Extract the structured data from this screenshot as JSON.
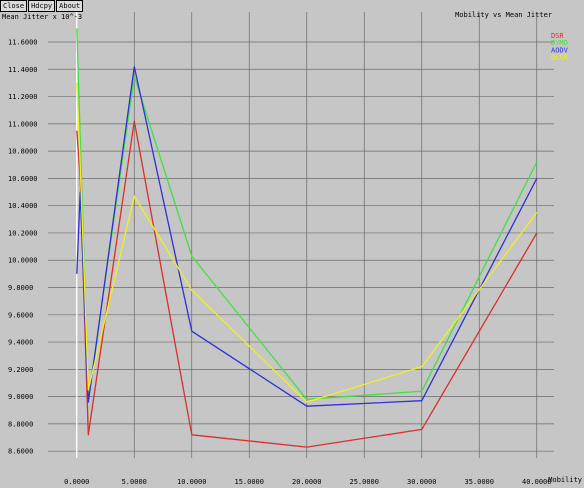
{
  "toolbar": {
    "close_label": "Close",
    "hdcpy_label": "Hdcpy",
    "about_label": "About"
  },
  "chart_data": {
    "type": "line",
    "title": "Mobility vs Mean Jitter",
    "xlabel": "Mobility",
    "ylabel": "Mean Jitter x 10^-3",
    "xlim": [
      -2.5,
      41.5
    ],
    "ylim": [
      8.55,
      11.82
    ],
    "xticks": [
      0,
      5,
      10,
      15,
      20,
      25,
      30,
      35,
      40
    ],
    "xtick_labels": [
      "0.0000",
      "5.0000",
      "10.0000",
      "15.0000",
      "20.0000",
      "25.0000",
      "30.0000",
      "35.0000",
      "40.0000"
    ],
    "yticks": [
      8.6,
      8.8,
      9.0,
      9.2,
      9.4,
      9.6,
      9.8,
      10.0,
      10.2,
      10.4,
      10.6,
      10.8,
      11.0,
      11.2,
      11.4,
      11.6
    ],
    "ytick_labels": [
      "8.6000",
      "8.8000",
      "9.0000",
      "9.2000",
      "9.4000",
      "9.6000",
      "9.8000",
      "10.0000",
      "10.2000",
      "10.4000",
      "10.6000",
      "10.8000",
      "11.0000",
      "11.2000",
      "11.4000",
      "11.6000"
    ],
    "grid": true,
    "legend_position": "top-right",
    "series": [
      {
        "name": "DSR",
        "color": "#d9302a",
        "x": [
          0,
          0.3,
          1,
          5,
          10,
          20,
          30,
          40
        ],
        "y": [
          10.95,
          10.6,
          8.72,
          11.02,
          8.72,
          8.63,
          8.76,
          10.2
        ]
      },
      {
        "name": "DYMO",
        "color": "#40e040",
        "x": [
          0,
          0.3,
          1,
          5,
          10,
          20,
          30,
          40
        ],
        "y": [
          11.7,
          10.9,
          8.98,
          11.35,
          10.03,
          8.98,
          9.04,
          10.72
        ]
      },
      {
        "name": "AODV",
        "color": "#3030d8",
        "x": [
          0,
          0.3,
          1,
          5,
          10,
          20,
          30,
          40
        ],
        "y": [
          9.9,
          10.5,
          8.96,
          11.42,
          9.48,
          8.93,
          8.97,
          10.6
        ]
      },
      {
        "name": "OLSR",
        "color": "#f0f020",
        "x": [
          0,
          0.3,
          1,
          5,
          10,
          20,
          30,
          40
        ],
        "y": [
          11.3,
          10.7,
          9.05,
          10.47,
          9.78,
          8.96,
          9.22,
          10.35
        ]
      }
    ]
  }
}
